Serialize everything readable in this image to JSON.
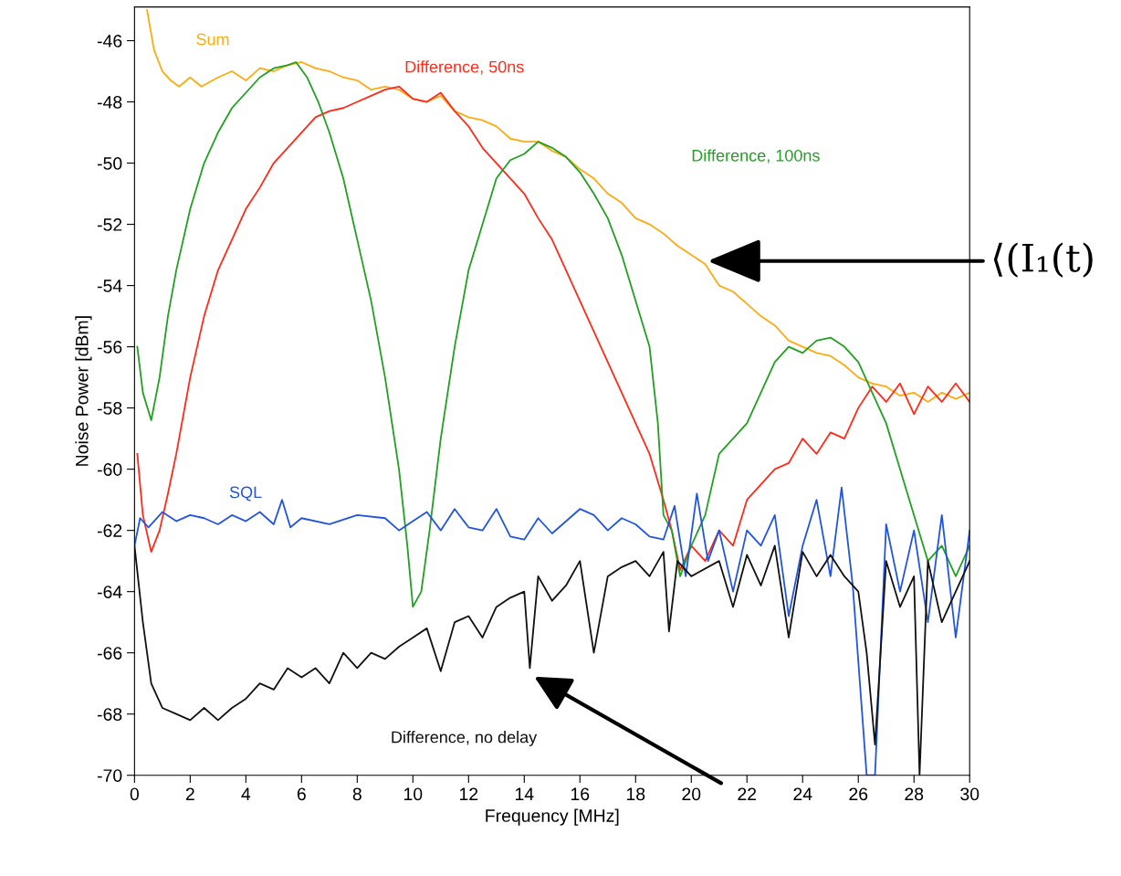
{
  "chart_data": {
    "type": "line",
    "xlabel": "Frequency [MHz]",
    "ylabel": "Noise Power [dBm]",
    "xlim": [
      0,
      30
    ],
    "xticks": [
      0,
      2,
      4,
      6,
      8,
      10,
      12,
      14,
      16,
      18,
      20,
      22,
      24,
      26,
      28,
      30
    ],
    "ylim": [
      -70,
      -44.9
    ],
    "yticks": [
      -70,
      -68,
      -66,
      -64,
      -62,
      -60,
      -58,
      -56,
      -54,
      -52,
      -50,
      -48,
      -46
    ],
    "grid": false,
    "legend": false,
    "marker": "none",
    "line_style": "solid",
    "annotations": [
      {
        "text": "⟨(I₁(t)",
        "x": 20.5,
        "y": -53.2
      }
    ],
    "series": [
      {
        "name": "Sum",
        "color": "#ffaa11",
        "x": [
          0.45,
          0.7,
          1.0,
          1.3,
          1.6,
          2.0,
          2.4,
          3.0,
          3.5,
          4.0,
          4.5,
          5.0,
          5.5,
          6.0,
          6.5,
          7.0,
          7.5,
          8.0,
          8.5,
          9.0,
          9.5,
          10,
          10.5,
          11,
          11.5,
          12,
          12.5,
          13,
          13.5,
          14,
          14.5,
          15,
          15.5,
          16,
          16.5,
          17,
          17.5,
          18,
          18.5,
          19,
          19.5,
          20,
          20.5,
          21,
          21.5,
          22,
          22.5,
          23,
          23.5,
          24,
          24.5,
          25,
          25.5,
          26,
          26.5,
          27,
          27.5,
          28,
          28.5,
          29,
          29.5,
          30
        ],
        "values": [
          -45.0,
          -46.3,
          -47.0,
          -47.3,
          -47.5,
          -47.2,
          -47.5,
          -47.2,
          -47.0,
          -47.3,
          -46.9,
          -47.0,
          -46.8,
          -46.7,
          -46.9,
          -47.0,
          -47.2,
          -47.3,
          -47.6,
          -47.5,
          -47.6,
          -47.9,
          -48.0,
          -47.8,
          -48.3,
          -48.5,
          -48.6,
          -48.8,
          -49.2,
          -49.3,
          -49.3,
          -49.6,
          -49.8,
          -50.2,
          -50.5,
          -51.0,
          -51.3,
          -51.8,
          -52.0,
          -52.3,
          -52.7,
          -53.0,
          -53.3,
          -54.0,
          -54.2,
          -54.6,
          -55.0,
          -55.3,
          -55.8,
          -56.0,
          -56.2,
          -56.3,
          -56.6,
          -57.0,
          -57.2,
          -57.3,
          -57.6,
          -57.5,
          -57.8,
          -57.5,
          -57.7,
          -57.5
        ]
      },
      {
        "name": "Difference, 50ns",
        "color": "#ff2a1a",
        "x": [
          0.1,
          0.3,
          0.6,
          0.9,
          1.2,
          1.5,
          2.0,
          2.5,
          3.0,
          3.5,
          4.0,
          4.5,
          5.0,
          5.5,
          6.0,
          6.5,
          7.0,
          7.5,
          8.0,
          8.5,
          9.0,
          9.5,
          10,
          10.5,
          11,
          11.5,
          12,
          12.5,
          13,
          13.5,
          14,
          14.5,
          15,
          15.5,
          16,
          16.5,
          17,
          17.5,
          18,
          18.5,
          19,
          19.3,
          19.6,
          20,
          20.5,
          21,
          21.5,
          22,
          22.5,
          23,
          23.5,
          24,
          24.5,
          25,
          25.5,
          26,
          26.5,
          27,
          27.5,
          28,
          28.5,
          29,
          29.5,
          30
        ],
        "values": [
          -59.5,
          -61.5,
          -62.7,
          -62.0,
          -60.8,
          -59.5,
          -57.0,
          -55.0,
          -53.5,
          -52.5,
          -51.5,
          -50.8,
          -50.0,
          -49.5,
          -49.0,
          -48.5,
          -48.3,
          -48.2,
          -48.0,
          -47.8,
          -47.6,
          -47.5,
          -47.9,
          -48.0,
          -47.7,
          -48.3,
          -48.8,
          -49.5,
          -50.0,
          -50.5,
          -51.0,
          -51.8,
          -52.5,
          -53.5,
          -54.5,
          -55.5,
          -56.5,
          -57.5,
          -58.5,
          -59.5,
          -61.0,
          -62.0,
          -63.3,
          -62.5,
          -63.0,
          -62.0,
          -62.5,
          -61.0,
          -60.5,
          -60.0,
          -59.8,
          -59.0,
          -59.5,
          -58.8,
          -59.0,
          -58.0,
          -57.3,
          -57.8,
          -57.2,
          -58.2,
          -57.3,
          -57.8,
          -57.2,
          -57.8
        ]
      },
      {
        "name": "Difference, 100ns",
        "color": "#22a022",
        "x": [
          0.1,
          0.3,
          0.6,
          0.9,
          1.2,
          1.5,
          2.0,
          2.5,
          3.0,
          3.5,
          4.0,
          4.5,
          5.0,
          5.5,
          5.8,
          6.2,
          6.6,
          7.0,
          7.5,
          8.0,
          8.5,
          9.0,
          9.5,
          9.8,
          10.0,
          10.3,
          10.6,
          11,
          11.5,
          12,
          12.5,
          13,
          13.5,
          14,
          14.5,
          15,
          15.5,
          16,
          16.5,
          17,
          17.5,
          18,
          18.5,
          18.8,
          19.0,
          19.3,
          19.6,
          20,
          20.5,
          21,
          21.5,
          22,
          22.5,
          23,
          23.5,
          24,
          24.5,
          25,
          25.5,
          26,
          26.5,
          27,
          27.5,
          28,
          28.5,
          29,
          29.5,
          30
        ],
        "values": [
          -56.0,
          -57.5,
          -58.4,
          -57.0,
          -55.0,
          -53.5,
          -51.5,
          -50.0,
          -49.0,
          -48.2,
          -47.7,
          -47.2,
          -46.9,
          -46.8,
          -46.7,
          -47.2,
          -48.0,
          -49.0,
          -50.5,
          -52.5,
          -54.5,
          -57.0,
          -60.0,
          -62.5,
          -64.5,
          -64.0,
          -62.0,
          -59.0,
          -56.0,
          -53.5,
          -52.0,
          -50.5,
          -49.9,
          -49.7,
          -49.3,
          -49.5,
          -49.8,
          -50.3,
          -51.0,
          -51.8,
          -53.0,
          -54.5,
          -56.0,
          -58.5,
          -61.5,
          -62.0,
          -63.5,
          -62.5,
          -61.5,
          -59.5,
          -59.0,
          -58.5,
          -57.5,
          -56.5,
          -56.0,
          -56.2,
          -55.8,
          -55.7,
          -56.0,
          -56.5,
          -57.5,
          -58.5,
          -60.0,
          -61.5,
          -63.0,
          -62.5,
          -63.5,
          -62.5
        ]
      },
      {
        "name": "SQL",
        "color": "#2255dd",
        "x": [
          0,
          0.2,
          0.5,
          1,
          1.5,
          2,
          2.5,
          3,
          3.5,
          4,
          4.5,
          5,
          5.3,
          5.6,
          6,
          7,
          8,
          9,
          9.5,
          10,
          10.5,
          11,
          11.5,
          12,
          12.5,
          13,
          13.5,
          14,
          14.5,
          15,
          16,
          16.5,
          17,
          17.5,
          18,
          18.5,
          19,
          19.4,
          19.8,
          20.2,
          20.6,
          21,
          21.5,
          22,
          22.5,
          23,
          23.5,
          24,
          24.5,
          25,
          25.4,
          25.8,
          26.3,
          26.6,
          27,
          27.5,
          28,
          28.5,
          29,
          29.5,
          30
        ],
        "values": [
          -62.5,
          -61.6,
          -61.9,
          -61.4,
          -61.7,
          -61.5,
          -61.6,
          -61.8,
          -61.5,
          -61.7,
          -61.4,
          -61.8,
          -61.0,
          -61.9,
          -61.6,
          -61.8,
          -61.5,
          -61.6,
          -62.0,
          -61.7,
          -61.4,
          -62.0,
          -61.3,
          -61.9,
          -62.0,
          -61.3,
          -62.2,
          -62.3,
          -61.6,
          -62.1,
          -61.3,
          -61.5,
          -62.0,
          -61.6,
          -61.8,
          -62.2,
          -62.3,
          -61.2,
          -63.5,
          -60.8,
          -63.0,
          -62.0,
          -64.0,
          -62.0,
          -62.5,
          -61.5,
          -64.8,
          -62.5,
          -61.0,
          -63.5,
          -60.6,
          -63.8,
          -70.0,
          -70.0,
          -61.8,
          -64.0,
          -62.0,
          -65.0,
          -61.5,
          -65.5,
          -62.0
        ]
      },
      {
        "name": "Difference, no delay",
        "color": "#111111",
        "x": [
          0,
          0.3,
          0.6,
          1.0,
          1.5,
          2.0,
          2.5,
          3.0,
          3.5,
          4.0,
          4.5,
          5.0,
          5.5,
          6.0,
          6.5,
          7.0,
          7.5,
          8.0,
          8.5,
          9.0,
          9.5,
          10,
          10.5,
          11,
          11.5,
          12,
          12.5,
          13,
          13.5,
          14,
          14.2,
          14.5,
          15,
          15.5,
          16,
          16.5,
          17,
          17.5,
          18,
          18.5,
          19,
          19.2,
          19.5,
          20,
          21,
          21.5,
          22,
          22.5,
          23,
          23.5,
          24,
          24.5,
          25,
          25.5,
          26,
          26.3,
          26.6,
          27,
          27.5,
          28,
          28.2,
          28.5,
          29,
          29.5,
          30
        ],
        "values": [
          -62.5,
          -65.0,
          -67.0,
          -67.8,
          -68.0,
          -68.2,
          -67.8,
          -68.2,
          -67.8,
          -67.5,
          -67.0,
          -67.2,
          -66.5,
          -66.8,
          -66.5,
          -67.0,
          -66.0,
          -66.5,
          -66.0,
          -66.2,
          -65.8,
          -65.5,
          -65.2,
          -66.6,
          -65.0,
          -64.8,
          -65.5,
          -64.5,
          -64.2,
          -64.0,
          -66.5,
          -63.5,
          -64.3,
          -63.8,
          -63.0,
          -66.0,
          -63.5,
          -63.2,
          -63.0,
          -63.5,
          -62.7,
          -65.3,
          -63.0,
          -63.5,
          -63.0,
          -64.5,
          -62.8,
          -63.8,
          -62.5,
          -65.5,
          -62.7,
          -63.5,
          -62.8,
          -63.5,
          -64.0,
          -66.0,
          -69.0,
          -63.0,
          -64.5,
          -63.5,
          -70.0,
          -63.0,
          -65.0,
          -64.0,
          -63.0
        ]
      }
    ]
  }
}
